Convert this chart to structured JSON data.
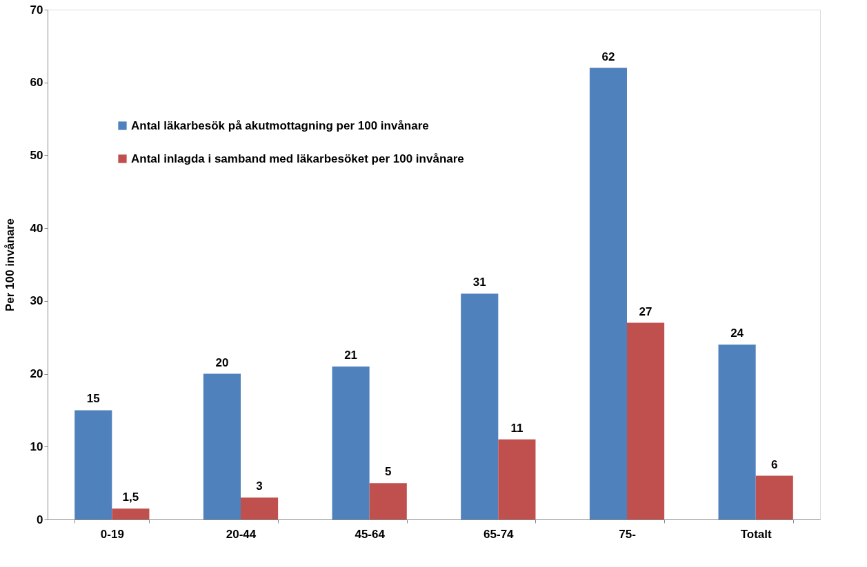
{
  "chart_data": {
    "type": "bar",
    "ylabel": "Per 100 invånare",
    "categories": [
      "0-19",
      "20-44",
      "45-64",
      "65-74",
      "75-",
      "Totalt"
    ],
    "series": [
      {
        "name": "Antal läkarbesök på akutmottagning per 100 invånare",
        "color": "#4f81bd",
        "values": [
          15,
          20,
          21,
          31,
          62,
          24
        ],
        "value_labels": [
          "15",
          "20",
          "21",
          "31",
          "62",
          "24"
        ]
      },
      {
        "name": "Antal inlagda i samband med läkarbesöket per 100 invånare",
        "color": "#c0504d",
        "values": [
          1.5,
          3,
          5,
          11,
          27,
          6
        ],
        "value_labels": [
          "1,5",
          "3",
          "5",
          "11",
          "27",
          "6"
        ]
      }
    ],
    "ylim": [
      0,
      70
    ],
    "yticks": [
      0,
      10,
      20,
      30,
      40,
      50,
      60,
      70
    ],
    "grid": false,
    "legend": "top left"
  }
}
